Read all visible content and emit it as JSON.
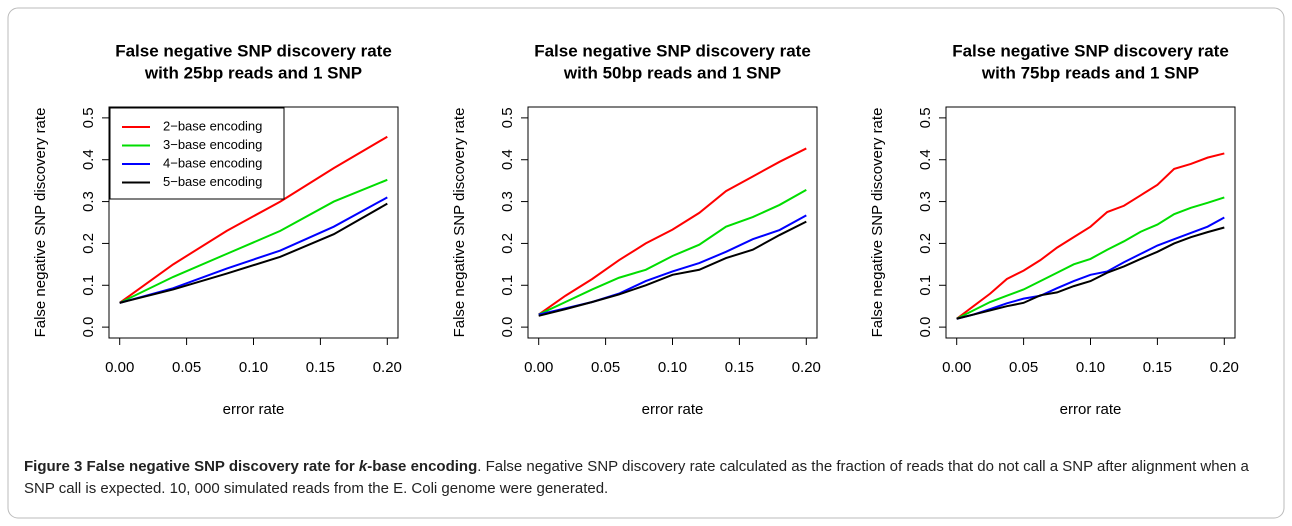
{
  "chart_data": [
    {
      "type": "line",
      "title": [
        "False negative SNP discovery rate",
        "with 25bp reads and 1 SNP"
      ],
      "x_label": "error rate",
      "y_label": "False negative SNP discovery rate",
      "x": [
        0,
        0.04,
        0.08,
        0.12,
        0.16,
        0.2
      ],
      "series": [
        {
          "name": "2−base encoding",
          "color": "#ff0000",
          "values": [
            0.058,
            0.15,
            0.23,
            0.3,
            0.38,
            0.455
          ]
        },
        {
          "name": "3−base encoding",
          "color": "#00dd00",
          "values": [
            0.058,
            0.12,
            0.175,
            0.23,
            0.3,
            0.352
          ]
        },
        {
          "name": "4−base encoding",
          "color": "#0000ff",
          "values": [
            0.058,
            0.093,
            0.14,
            0.183,
            0.24,
            0.31
          ]
        },
        {
          "name": "5−base encoding",
          "color": "#000000",
          "values": [
            0.058,
            0.09,
            0.128,
            0.168,
            0.222,
            0.295
          ]
        }
      ],
      "legend": "top-left",
      "xlim": [
        -0.008,
        0.208
      ],
      "xticks": [
        {
          "value": 0,
          "label": "0.00"
        },
        {
          "value": 0.05,
          "label": "0.05"
        },
        {
          "value": 0.1,
          "label": "0.10"
        },
        {
          "value": 0.15,
          "label": "0.15"
        },
        {
          "value": 0.2,
          "label": "0.20"
        }
      ],
      "ylim": [
        -0.026,
        0.526
      ],
      "yticks": [
        {
          "value": 0,
          "label": "0.0"
        },
        0.1,
        0.2,
        0.3,
        0.4,
        0.5
      ]
    },
    {
      "type": "line",
      "title": [
        "False negative SNP discovery rate",
        "with 50bp reads and 1 SNP"
      ],
      "x_label": "error rate",
      "y_label": "False negative SNP discovery rate",
      "x": [
        0,
        0.02,
        0.04,
        0.06,
        0.08,
        0.1,
        0.12,
        0.14,
        0.16,
        0.18,
        0.2
      ],
      "series": [
        {
          "color": "#ff0000",
          "values": [
            0.03,
            0.075,
            0.115,
            0.16,
            0.2,
            0.233,
            0.273,
            0.325,
            0.36,
            0.395,
            0.427
          ]
        },
        {
          "color": "#00dd00",
          "values": [
            0.03,
            0.06,
            0.09,
            0.118,
            0.137,
            0.17,
            0.197,
            0.24,
            0.263,
            0.292,
            0.328
          ]
        },
        {
          "color": "#0000ff",
          "values": [
            0.03,
            0.045,
            0.06,
            0.08,
            0.11,
            0.133,
            0.153,
            0.18,
            0.21,
            0.232,
            0.267
          ]
        },
        {
          "color": "#000000",
          "values": [
            0.027,
            0.043,
            0.06,
            0.078,
            0.1,
            0.125,
            0.137,
            0.165,
            0.185,
            0.22,
            0.252
          ]
        }
      ],
      "xlim": [
        -0.008,
        0.208
      ],
      "xticks": [
        {
          "value": 0,
          "label": "0.00"
        },
        {
          "value": 0.05,
          "label": "0.05"
        },
        {
          "value": 0.1,
          "label": "0.10"
        },
        {
          "value": 0.15,
          "label": "0.15"
        },
        {
          "value": 0.2,
          "label": "0.20"
        }
      ],
      "ylim": [
        -0.026,
        0.526
      ],
      "yticks": [
        {
          "value": 0,
          "label": "0.0"
        },
        0.1,
        0.2,
        0.3,
        0.4,
        0.5
      ]
    },
    {
      "type": "line",
      "title": [
        "False negative SNP discovery rate",
        "with 75bp reads and 1 SNP"
      ],
      "x_label": "error rate",
      "y_label": "False negative SNP discovery rate",
      "x": [
        0,
        0.0125,
        0.025,
        0.0375,
        0.05,
        0.0625,
        0.075,
        0.0875,
        0.1,
        0.1125,
        0.125,
        0.1375,
        0.15,
        0.1625,
        0.175,
        0.1875,
        0.2
      ],
      "series": [
        {
          "color": "#ff0000",
          "values": [
            0.02,
            0.05,
            0.08,
            0.115,
            0.135,
            0.16,
            0.19,
            0.215,
            0.24,
            0.275,
            0.29,
            0.315,
            0.34,
            0.378,
            0.39,
            0.405,
            0.415
          ]
        },
        {
          "color": "#00dd00",
          "values": [
            0.02,
            0.04,
            0.06,
            0.075,
            0.09,
            0.11,
            0.13,
            0.15,
            0.163,
            0.185,
            0.205,
            0.228,
            0.245,
            0.27,
            0.285,
            0.297,
            0.31
          ]
        },
        {
          "color": "#0000ff",
          "values": [
            0.02,
            0.03,
            0.043,
            0.057,
            0.068,
            0.075,
            0.093,
            0.11,
            0.125,
            0.133,
            0.155,
            0.175,
            0.195,
            0.21,
            0.225,
            0.24,
            0.262
          ]
        },
        {
          "color": "#000000",
          "values": [
            0.02,
            0.03,
            0.04,
            0.05,
            0.058,
            0.076,
            0.083,
            0.098,
            0.11,
            0.13,
            0.145,
            0.163,
            0.18,
            0.2,
            0.215,
            0.227,
            0.238
          ]
        }
      ],
      "xlim": [
        -0.008,
        0.208
      ],
      "xticks": [
        {
          "value": 0,
          "label": "0.00"
        },
        {
          "value": 0.05,
          "label": "0.05"
        },
        {
          "value": 0.1,
          "label": "0.10"
        },
        {
          "value": 0.15,
          "label": "0.15"
        },
        {
          "value": 0.2,
          "label": "0.20"
        }
      ],
      "ylim": [
        -0.026,
        0.526
      ],
      "yticks": [
        {
          "value": 0,
          "label": "0.0"
        },
        0.1,
        0.2,
        0.3,
        0.4,
        0.5
      ]
    }
  ],
  "caption": {
    "label": "Figure 3",
    "title_parts": [
      "False negative SNP discovery rate for ",
      "k",
      "-base encoding"
    ],
    "text": ". False negative SNP discovery rate calculated as the fraction of reads that do not call a SNP after alignment when a SNP call is expected. 10, 000 simulated reads from the E. Coli genome were generated."
  }
}
